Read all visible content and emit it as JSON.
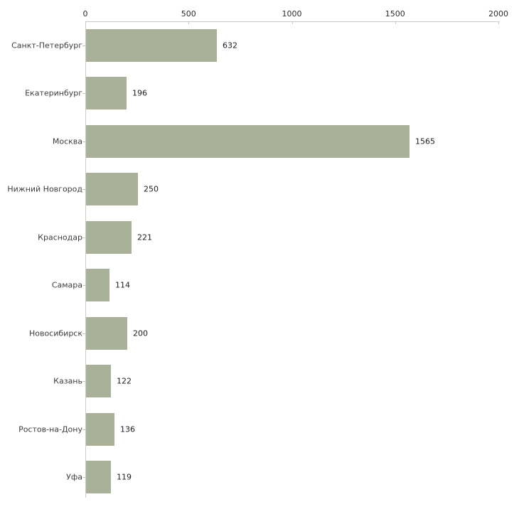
{
  "chart_data": {
    "type": "bar",
    "orientation": "horizontal",
    "title": "",
    "xlabel": "",
    "ylabel": "",
    "categories": [
      "Санкт-Петербург",
      "Екатеринбург",
      "Москва",
      "Нижний Новгород",
      "Краснодар",
      "Самара",
      "Новосибирск",
      "Казань",
      "Ростов-на-Дону",
      "Уфа"
    ],
    "values": [
      632,
      196,
      1565,
      250,
      221,
      114,
      200,
      122,
      136,
      119
    ],
    "xlim": [
      0,
      2000
    ],
    "x_ticks": [
      0,
      500,
      1000,
      1500,
      2000
    ],
    "x_tick_labels": [
      "0",
      "500",
      "1000",
      "1500",
      "2000"
    ],
    "grid": false,
    "legend": "none",
    "axis_position": "top-left",
    "colors": {
      "bar_fill": "#aab199",
      "axis_line": "#cccccc",
      "tick_mark": "#c6caa3",
      "tick_label": "#2b2b2b",
      "category_label": "#3d3d3d",
      "value_label": "#1c1c1c",
      "background": "#ffffff"
    }
  }
}
